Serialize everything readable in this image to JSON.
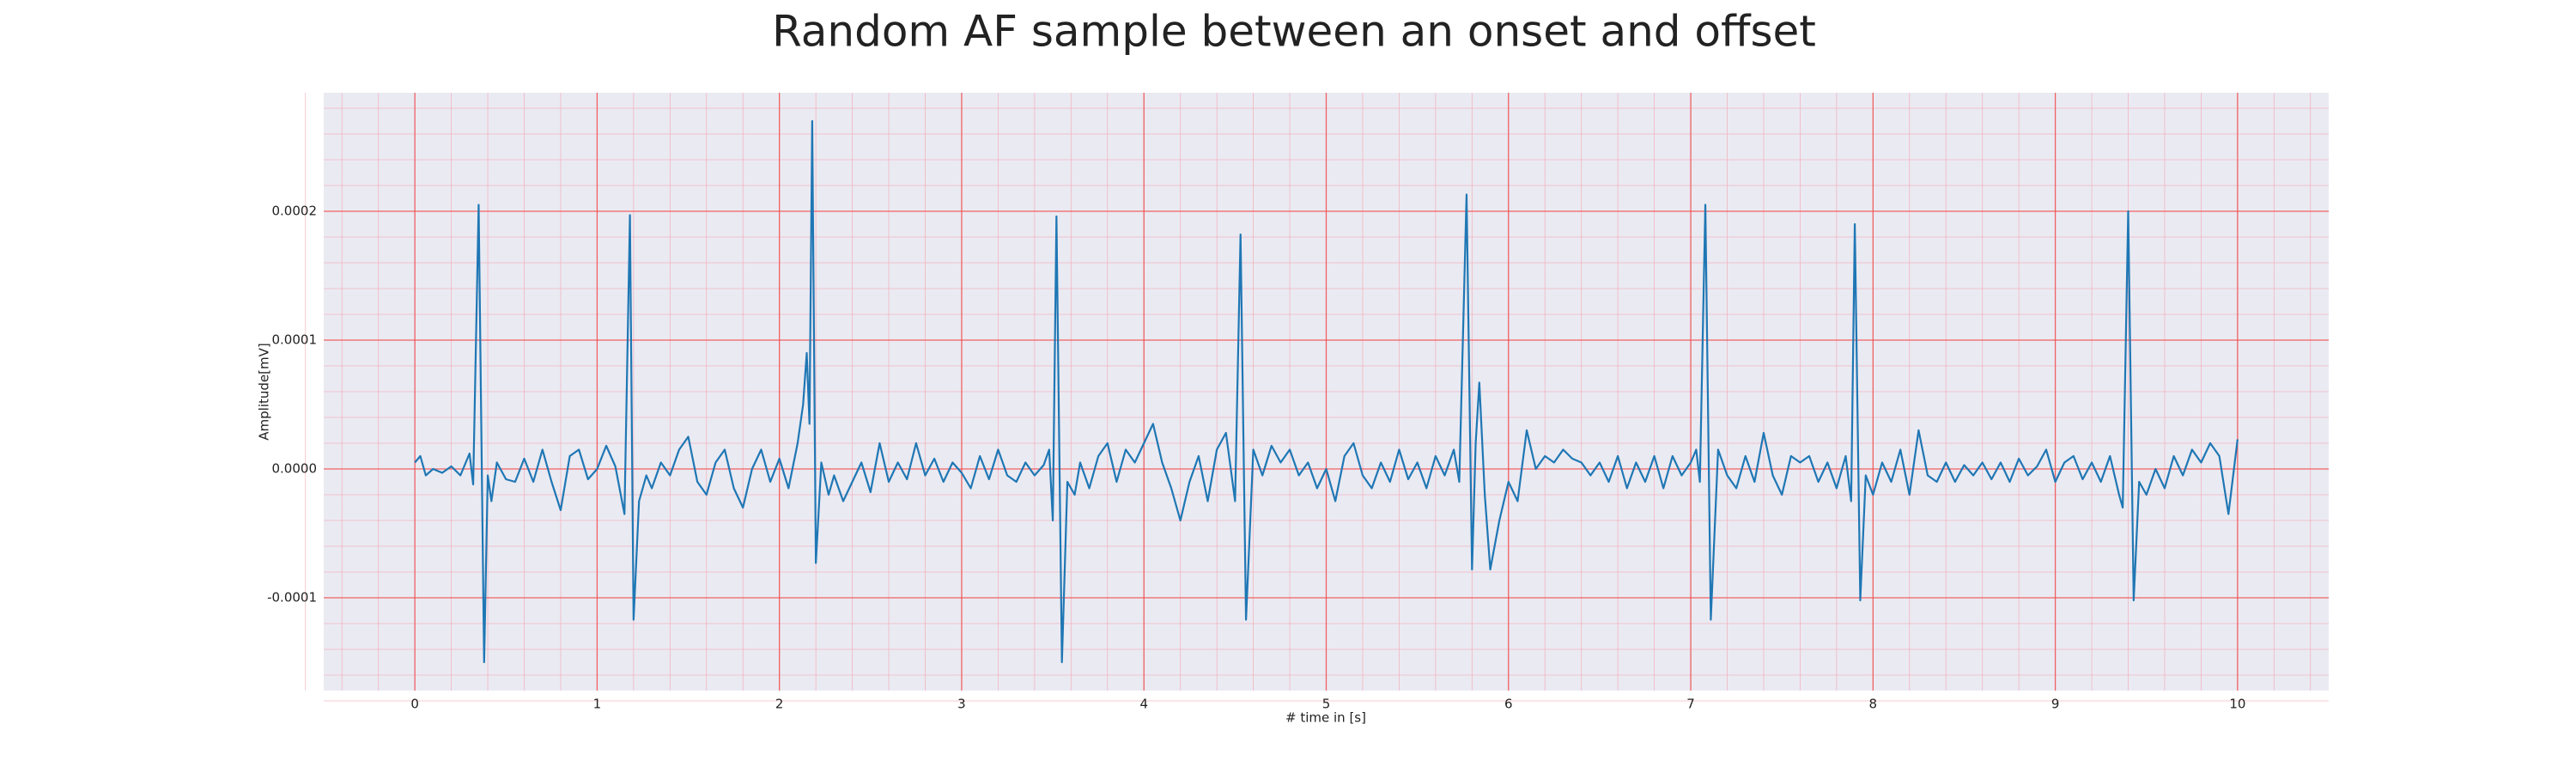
{
  "chart_data": {
    "type": "line",
    "title": "Random AF sample between an onset and offset",
    "xlabel": "# time in [s]",
    "ylabel": "Amplitude[mV]",
    "color": "#1f77b4",
    "grid": true,
    "minor_divisions": 5,
    "xlim": [
      -0.5,
      10.5
    ],
    "ylim": [
      -0.000172,
      0.000292
    ],
    "xticks": [
      0,
      1,
      2,
      3,
      4,
      5,
      6,
      7,
      8,
      9,
      10
    ],
    "yticks": [
      -0.0001,
      {
        "value": 0,
        "label": "0.0000"
      },
      0.0001,
      0.0002
    ],
    "x": [
      0,
      0.03,
      0.06,
      0.1,
      0.15,
      0.2,
      0.25,
      0.3,
      0.32,
      0.35,
      0.38,
      0.4,
      0.42,
      0.45,
      0.5,
      0.55,
      0.6,
      0.65,
      0.7,
      0.75,
      0.8,
      0.85,
      0.9,
      0.95,
      1.0,
      1.05,
      1.1,
      1.15,
      1.18,
      1.2,
      1.23,
      1.27,
      1.3,
      1.35,
      1.4,
      1.45,
      1.5,
      1.55,
      1.6,
      1.65,
      1.7,
      1.75,
      1.8,
      1.85,
      1.9,
      1.95,
      2.0,
      2.05,
      2.1,
      2.13,
      2.15,
      2.165,
      2.18,
      2.2,
      2.23,
      2.27,
      2.3,
      2.35,
      2.4,
      2.45,
      2.5,
      2.55,
      2.6,
      2.65,
      2.7,
      2.75,
      2.8,
      2.85,
      2.9,
      2.95,
      3.0,
      3.05,
      3.1,
      3.15,
      3.2,
      3.25,
      3.3,
      3.35,
      3.4,
      3.45,
      3.48,
      3.5,
      3.52,
      3.55,
      3.58,
      3.62,
      3.65,
      3.7,
      3.75,
      3.8,
      3.85,
      3.9,
      3.95,
      4.0,
      4.05,
      4.1,
      4.15,
      4.2,
      4.25,
      4.3,
      4.35,
      4.4,
      4.45,
      4.5,
      4.53,
      4.56,
      4.6,
      4.65,
      4.7,
      4.75,
      4.8,
      4.85,
      4.9,
      4.95,
      5.0,
      5.05,
      5.1,
      5.15,
      5.2,
      5.25,
      5.3,
      5.35,
      5.4,
      5.45,
      5.5,
      5.55,
      5.6,
      5.65,
      5.7,
      5.73,
      5.77,
      5.8,
      5.82,
      5.84,
      5.87,
      5.9,
      5.95,
      6.0,
      6.05,
      6.1,
      6.15,
      6.2,
      6.25,
      6.3,
      6.35,
      6.4,
      6.45,
      6.5,
      6.55,
      6.6,
      6.65,
      6.7,
      6.75,
      6.8,
      6.85,
      6.9,
      6.95,
      7.0,
      7.03,
      7.05,
      7.08,
      7.11,
      7.15,
      7.2,
      7.25,
      7.3,
      7.35,
      7.4,
      7.45,
      7.5,
      7.55,
      7.6,
      7.65,
      7.7,
      7.75,
      7.8,
      7.85,
      7.88,
      7.9,
      7.93,
      7.96,
      8.0,
      8.05,
      8.1,
      8.15,
      8.2,
      8.25,
      8.3,
      8.35,
      8.4,
      8.45,
      8.5,
      8.55,
      8.6,
      8.65,
      8.7,
      8.75,
      8.8,
      8.85,
      8.9,
      8.95,
      9.0,
      9.05,
      9.1,
      9.15,
      9.2,
      9.25,
      9.3,
      9.35,
      9.37,
      9.4,
      9.43,
      9.46,
      9.5,
      9.55,
      9.6,
      9.65,
      9.7,
      9.75,
      9.8,
      9.85,
      9.9,
      9.95,
      10.0
    ],
    "values": [
      5e-06,
      1e-05,
      -5e-06,
      0,
      -3e-06,
      2e-06,
      -5e-06,
      1.2e-05,
      -1.2e-05,
      0.000205,
      -0.00015,
      -5e-06,
      -2.5e-05,
      5e-06,
      -8e-06,
      -1e-05,
      8e-06,
      -1e-05,
      1.5e-05,
      -1e-05,
      -3.2e-05,
      1e-05,
      1.5e-05,
      -8e-06,
      0,
      1.8e-05,
      2e-06,
      -3.5e-05,
      0.000197,
      -0.000117,
      -2.5e-05,
      -5e-06,
      -1.5e-05,
      5e-06,
      -5e-06,
      1.5e-05,
      2.5e-05,
      -1e-05,
      -2e-05,
      5e-06,
      1.5e-05,
      -1.5e-05,
      -3e-05,
      0,
      1.5e-05,
      -1e-05,
      8e-06,
      -1.5e-05,
      2e-05,
      5e-05,
      9e-05,
      3.5e-05,
      0.00027,
      -7.3e-05,
      5e-06,
      -2e-05,
      -5e-06,
      -2.5e-05,
      -1e-05,
      5e-06,
      -1.8e-05,
      2e-05,
      -1e-05,
      5e-06,
      -8e-06,
      2e-05,
      -5e-06,
      8e-06,
      -1e-05,
      5e-06,
      -3e-06,
      -1.5e-05,
      1e-05,
      -8e-06,
      1.5e-05,
      -5e-06,
      -1e-05,
      5e-06,
      -5e-06,
      3e-06,
      1.5e-05,
      -4e-05,
      0.000196,
      -0.00015,
      -1e-05,
      -2e-05,
      5e-06,
      -1.5e-05,
      1e-05,
      2e-05,
      -1e-05,
      1.5e-05,
      5e-06,
      2e-05,
      3.5e-05,
      5e-06,
      -1.5e-05,
      -4e-05,
      -1e-05,
      1e-05,
      -2.5e-05,
      1.5e-05,
      2.8e-05,
      -2.5e-05,
      0.000182,
      -0.000117,
      1.5e-05,
      -5e-06,
      1.8e-05,
      5e-06,
      1.5e-05,
      -5e-06,
      5e-06,
      -1.5e-05,
      0,
      -2.5e-05,
      1e-05,
      2e-05,
      -5e-06,
      -1.5e-05,
      5e-06,
      -1e-05,
      1.5e-05,
      -8e-06,
      5e-06,
      -1.5e-05,
      1e-05,
      -5e-06,
      1.5e-05,
      -1e-05,
      0.000213,
      -7.8e-05,
      2e-05,
      6.7e-05,
      -2e-05,
      -7.8e-05,
      -4e-05,
      -1e-05,
      -2.5e-05,
      3e-05,
      0,
      1e-05,
      5e-06,
      1.5e-05,
      8e-06,
      5e-06,
      -5e-06,
      5e-06,
      -1e-05,
      1e-05,
      -1.5e-05,
      5e-06,
      -1e-05,
      1e-05,
      -1.5e-05,
      1e-05,
      -5e-06,
      5e-06,
      1.5e-05,
      -1e-05,
      0.000205,
      -0.000117,
      1.5e-05,
      -5e-06,
      -1.5e-05,
      1e-05,
      -1e-05,
      2.8e-05,
      -5e-06,
      -2e-05,
      1e-05,
      5e-06,
      1e-05,
      -1e-05,
      5e-06,
      -1.5e-05,
      1e-05,
      -2.5e-05,
      0.00019,
      -0.000102,
      -5e-06,
      -2e-05,
      5e-06,
      -1e-05,
      1.5e-05,
      -2e-05,
      3e-05,
      -5e-06,
      -1e-05,
      5e-06,
      -1e-05,
      3e-06,
      -5e-06,
      5e-06,
      -8e-06,
      5e-06,
      -1e-05,
      8e-06,
      -5e-06,
      2e-06,
      1.5e-05,
      -1e-05,
      5e-06,
      1e-05,
      -8e-06,
      5e-06,
      -1e-05,
      1e-05,
      -2e-05,
      -3e-05,
      0.0002,
      -0.000102,
      -1e-05,
      -2e-05,
      0,
      -1.5e-05,
      1e-05,
      -5e-06,
      1.5e-05,
      5e-06,
      2e-05,
      1e-05,
      -3.5e-05,
      2.3e-05
    ]
  }
}
